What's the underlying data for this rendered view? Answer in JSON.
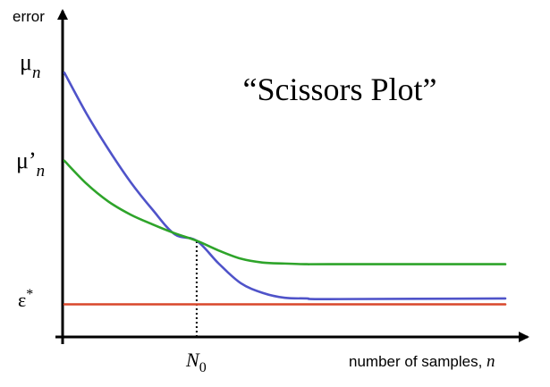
{
  "chart_data": {
    "type": "line",
    "title": "“Scissors Plot”",
    "ylabel": "error",
    "xlabel": "number of samples, ",
    "xlabel_var": "n",
    "y_ticks": [
      {
        "id": "mu-n",
        "symbol": "μ",
        "prime": "",
        "sub": "n",
        "value": 0.81
      },
      {
        "id": "mu-prime-n",
        "symbol": "μ",
        "prime": "’",
        "sub": "n",
        "value": 0.54
      },
      {
        "id": "epsilon-star",
        "symbol": "ε",
        "prime": "",
        "sup": "*",
        "sub": "",
        "value": 0.1
      }
    ],
    "x_ticks": [
      {
        "id": "n0",
        "base": "N",
        "sub": "0",
        "value": 0.3
      }
    ],
    "xlim": [
      0,
      1
    ],
    "ylim": [
      0,
      1
    ],
    "grid": false,
    "series": [
      {
        "id": "blue",
        "color": "#4f53c9",
        "x": [
          0.0,
          0.05,
          0.1,
          0.15,
          0.2,
          0.25,
          0.3,
          0.35,
          0.4,
          0.45,
          0.5,
          0.55,
          0.6,
          1.0
        ],
        "y": [
          0.81,
          0.685,
          0.575,
          0.475,
          0.39,
          0.315,
          0.295,
          0.225,
          0.165,
          0.135,
          0.12,
          0.118,
          0.116,
          0.118
        ]
      },
      {
        "id": "green",
        "color": "#2ea42a",
        "x": [
          0.0,
          0.05,
          0.1,
          0.15,
          0.2,
          0.25,
          0.3,
          0.35,
          0.4,
          0.45,
          0.5,
          0.55,
          0.6,
          1.0
        ],
        "y": [
          0.54,
          0.47,
          0.415,
          0.375,
          0.345,
          0.318,
          0.295,
          0.265,
          0.24,
          0.228,
          0.225,
          0.223,
          0.223,
          0.223
        ]
      },
      {
        "id": "red",
        "color": "#d9472b",
        "x": [
          0.0,
          1.0
        ],
        "y": [
          0.1,
          0.1
        ]
      }
    ],
    "annotations": [
      {
        "id": "n0-dotted-guide",
        "type": "vertical-dotted",
        "x": 0.3,
        "from_y": 0,
        "to_y": 0.295
      }
    ]
  }
}
